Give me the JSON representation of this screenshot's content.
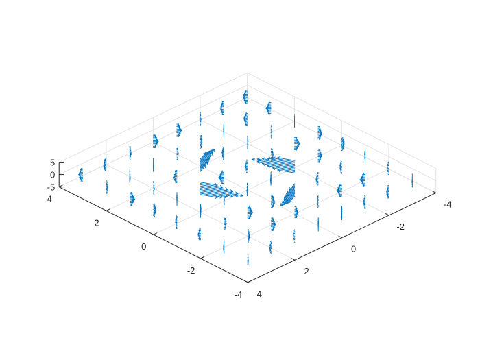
{
  "chart_data": {
    "type": "quiver3",
    "title": "",
    "xlabel": "",
    "ylabel": "",
    "zlabel": "",
    "xlim": [
      -4,
      4
    ],
    "ylim": [
      -4,
      4
    ],
    "zlim": [
      -5,
      5
    ],
    "x_ticks": [
      -4,
      -2,
      0,
      2,
      4
    ],
    "y_ticks": [
      -4,
      -2,
      0,
      2,
      4
    ],
    "z_ticks": [
      -5,
      0,
      5
    ],
    "x_tick_labels": [
      "-4",
      "-2",
      "0",
      "2",
      "4"
    ],
    "y_tick_labels": [
      "4",
      "2",
      "0",
      "-2",
      "-4"
    ],
    "z_tick_labels": [
      "5",
      "0",
      "-5"
    ],
    "grid": true,
    "box": false,
    "color": "#0072BD",
    "grid_points": [
      -3.5,
      -2.5,
      -1.5,
      -0.5,
      0.5,
      1.5,
      2.5,
      3.5
    ],
    "notable_arrows": [
      {
        "x": 0.5,
        "y": 1.5,
        "u": -1.2,
        "v": -0.6,
        "w": 0.5
      },
      {
        "x": -0.5,
        "y": -1.5,
        "u": 1.2,
        "v": 0.6,
        "w": -0.5
      },
      {
        "x": 1.5,
        "y": 0.5,
        "u": 0.4,
        "v": -1.0,
        "w": 0.3
      },
      {
        "x": -1.5,
        "y": -0.5,
        "u": -0.4,
        "v": 1.0,
        "w": -0.3
      }
    ]
  }
}
